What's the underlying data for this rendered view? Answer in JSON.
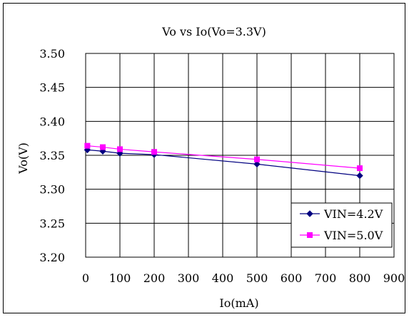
{
  "chart_data": {
    "type": "line",
    "title": "Vo vs Io(Vo=3.3V)",
    "xlabel": "Io(mA)",
    "ylabel": "Vo(V)",
    "xlim": [
      0,
      900
    ],
    "ylim": [
      3.2,
      3.5
    ],
    "xticks": [
      0,
      100,
      200,
      300,
      400,
      500,
      600,
      700,
      800,
      900
    ],
    "yticks": [
      3.2,
      3.25,
      3.3,
      3.35,
      3.4,
      3.45,
      3.5
    ],
    "xtick_labels": [
      "0",
      "100",
      "200",
      "300",
      "400",
      "500",
      "600",
      "700",
      "800",
      "900"
    ],
    "ytick_labels": [
      "3.20",
      "3.25",
      "3.30",
      "3.35",
      "3.40",
      "3.45",
      "3.50"
    ],
    "grid": true,
    "legend_position": "bottom-right",
    "series": [
      {
        "name": "VIN=4.2V",
        "color": "#000080",
        "marker": "diamond",
        "x": [
          5,
          50,
          100,
          200,
          500,
          800
        ],
        "y": [
          3.358,
          3.356,
          3.353,
          3.351,
          3.337,
          3.32
        ]
      },
      {
        "name": "VIN=5.0V",
        "color": "#ff00ff",
        "marker": "square",
        "x": [
          5,
          50,
          100,
          200,
          500,
          800
        ],
        "y": [
          3.364,
          3.362,
          3.359,
          3.355,
          3.344,
          3.331
        ]
      }
    ]
  }
}
